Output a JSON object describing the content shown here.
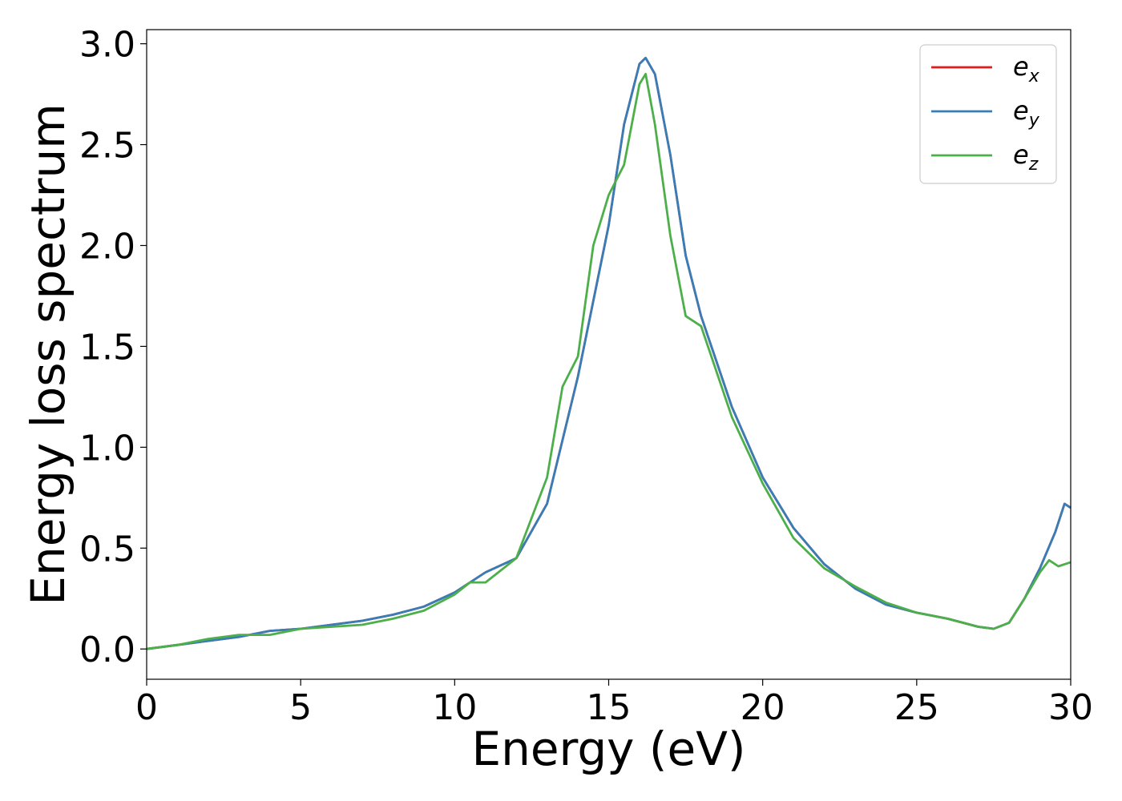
{
  "chart_data": {
    "type": "line",
    "xlabel": "Energy (eV)",
    "ylabel": "Energy loss spectrum",
    "xlim": [
      0,
      30
    ],
    "ylim": [
      -0.15,
      3.07
    ],
    "xticks": [
      0,
      5,
      10,
      15,
      20,
      25,
      30
    ],
    "xtick_labels": [
      "0",
      "5",
      "10",
      "15",
      "20",
      "25",
      "30"
    ],
    "yticks": [
      0.0,
      0.5,
      1.0,
      1.5,
      2.0,
      2.5,
      3.0
    ],
    "ytick_labels": [
      "0.0",
      "0.5",
      "1.0",
      "1.5",
      "2.0",
      "2.5",
      "3.0"
    ],
    "grid": false,
    "legend_position": "top-right",
    "series": [
      {
        "name": "e",
        "subscript": "x",
        "color": "#e41a1c",
        "x": [
          0,
          1,
          2,
          3,
          4,
          5,
          6,
          7,
          8,
          9,
          10,
          11,
          12,
          13,
          14,
          15,
          15.5,
          16,
          16.2,
          16.5,
          17,
          17.5,
          18,
          19,
          20,
          21,
          22,
          23,
          24,
          25,
          26,
          27,
          27.5,
          28,
          28.5,
          29,
          29.5,
          29.8,
          30
        ],
        "y": [
          0,
          0.02,
          0.04,
          0.06,
          0.09,
          0.1,
          0.12,
          0.14,
          0.17,
          0.21,
          0.28,
          0.38,
          0.45,
          0.72,
          1.35,
          2.1,
          2.6,
          2.9,
          2.93,
          2.85,
          2.45,
          1.95,
          1.65,
          1.2,
          0.85,
          0.6,
          0.42,
          0.3,
          0.22,
          0.18,
          0.15,
          0.11,
          0.1,
          0.13,
          0.25,
          0.4,
          0.58,
          0.72,
          0.7
        ]
      },
      {
        "name": "e",
        "subscript": "y",
        "color": "#377eb8",
        "x": [
          0,
          1,
          2,
          3,
          4,
          5,
          6,
          7,
          8,
          9,
          10,
          11,
          12,
          13,
          14,
          15,
          15.5,
          16,
          16.2,
          16.5,
          17,
          17.5,
          18,
          19,
          20,
          21,
          22,
          23,
          24,
          25,
          26,
          27,
          27.5,
          28,
          28.5,
          29,
          29.5,
          29.8,
          30
        ],
        "y": [
          0,
          0.02,
          0.04,
          0.06,
          0.09,
          0.1,
          0.12,
          0.14,
          0.17,
          0.21,
          0.28,
          0.38,
          0.45,
          0.72,
          1.35,
          2.1,
          2.6,
          2.9,
          2.93,
          2.85,
          2.45,
          1.95,
          1.65,
          1.2,
          0.85,
          0.6,
          0.42,
          0.3,
          0.22,
          0.18,
          0.15,
          0.11,
          0.1,
          0.13,
          0.25,
          0.4,
          0.58,
          0.72,
          0.7
        ]
      },
      {
        "name": "e",
        "subscript": "z",
        "color": "#4daf4a",
        "x": [
          0,
          1,
          2,
          3,
          4,
          5,
          6,
          7,
          8,
          9,
          10,
          10.5,
          11,
          12,
          13,
          13.5,
          14,
          14.5,
          15,
          15.5,
          16,
          16.2,
          16.5,
          17,
          17.5,
          18,
          19,
          20,
          21,
          22,
          23,
          24,
          25,
          26,
          27,
          27.5,
          28,
          28.5,
          29,
          29.3,
          29.6,
          30
        ],
        "y": [
          0,
          0.02,
          0.05,
          0.07,
          0.07,
          0.1,
          0.11,
          0.12,
          0.15,
          0.19,
          0.27,
          0.33,
          0.33,
          0.45,
          0.85,
          1.3,
          1.45,
          2.0,
          2.25,
          2.4,
          2.8,
          2.85,
          2.6,
          2.05,
          1.65,
          1.6,
          1.15,
          0.82,
          0.55,
          0.4,
          0.31,
          0.23,
          0.18,
          0.15,
          0.11,
          0.1,
          0.13,
          0.25,
          0.38,
          0.44,
          0.41,
          0.43
        ]
      }
    ]
  }
}
